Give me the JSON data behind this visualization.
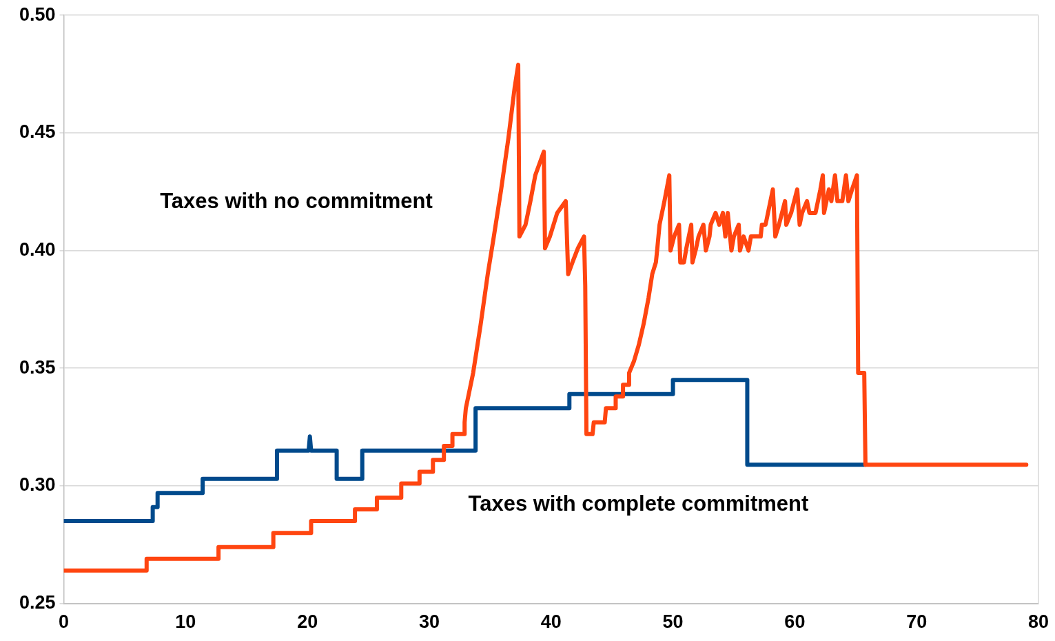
{
  "chart_data": {
    "type": "line",
    "xlim": [
      0,
      80
    ],
    "xticks": [
      0,
      10,
      20,
      30,
      40,
      50,
      60,
      70,
      80
    ],
    "ylim": [
      0.25,
      0.5
    ],
    "yticks": [
      {
        "value": 0.25,
        "label": "0.25"
      },
      {
        "value": 0.3,
        "label": "0.30"
      },
      {
        "value": 0.35,
        "label": "0.35"
      },
      {
        "value": 0.4,
        "label": "0.40"
      },
      {
        "value": 0.45,
        "label": "0.45"
      },
      {
        "value": 0.5,
        "label": "0.50"
      }
    ],
    "grid": "y",
    "legend": false,
    "marker": "none",
    "line_style": "solid",
    "series": [
      {
        "name": "Taxes with no commitment",
        "color": "#ff4510",
        "x": [
          0,
          6.8,
          6.8,
          12.7,
          12.7,
          17.2,
          17.2,
          20.3,
          20.3,
          23.9,
          23.9,
          25.7,
          25.7,
          27.7,
          27.7,
          29.2,
          29.2,
          30.3,
          30.3,
          31.2,
          31.2,
          31.9,
          31.9,
          32.9,
          32.9,
          33.0,
          33.6,
          34.2,
          34.8,
          35.3,
          35.9,
          36.5,
          37.0,
          37.3,
          37.4,
          37.9,
          38.3,
          38.7,
          39.4,
          39.5,
          39.9,
          40.5,
          41.2,
          41.4,
          41.75,
          42.2,
          42.7,
          42.8,
          42.9,
          43.4,
          43.5,
          44.4,
          44.5,
          45.3,
          45.3,
          45.9,
          45.9,
          46.4,
          46.4,
          46.8,
          47.2,
          47.6,
          48.0,
          48.3,
          48.6,
          48.7,
          48.9,
          49.3,
          49.7,
          49.8,
          50.1,
          50.5,
          50.6,
          50.9,
          51.1,
          51.5,
          51.6,
          51.9,
          52.1,
          52.5,
          52.7,
          53.0,
          53.1,
          53.5,
          53.8,
          54.1,
          54.3,
          54.5,
          54.8,
          55.0,
          55.4,
          55.5,
          55.8,
          56.2,
          56.4,
          57.2,
          57.3,
          57.6,
          58.0,
          58.2,
          58.4,
          58.7,
          59.2,
          59.3,
          59.7,
          60.2,
          60.4,
          60.6,
          61.0,
          61.2,
          61.7,
          61.9,
          62.1,
          62.3,
          62.4,
          62.8,
          63.0,
          63.3,
          63.5,
          63.9,
          64.2,
          64.4,
          64.7,
          65.1,
          65.2,
          65.7,
          65.8,
          79
        ],
        "values": [
          0.264,
          0.264,
          0.269,
          0.269,
          0.274,
          0.274,
          0.28,
          0.28,
          0.285,
          0.285,
          0.29,
          0.29,
          0.295,
          0.295,
          0.301,
          0.301,
          0.306,
          0.306,
          0.311,
          0.311,
          0.317,
          0.317,
          0.322,
          0.322,
          0.327,
          0.333,
          0.348,
          0.368,
          0.39,
          0.406,
          0.426,
          0.448,
          0.469,
          0.479,
          0.406,
          0.411,
          0.421,
          0.432,
          0.442,
          0.401,
          0.406,
          0.416,
          0.421,
          0.39,
          0.395,
          0.401,
          0.406,
          0.385,
          0.322,
          0.322,
          0.327,
          0.327,
          0.333,
          0.333,
          0.338,
          0.338,
          0.343,
          0.343,
          0.348,
          0.353,
          0.36,
          0.369,
          0.38,
          0.39,
          0.395,
          0.4,
          0.411,
          0.421,
          0.432,
          0.4,
          0.406,
          0.411,
          0.395,
          0.395,
          0.401,
          0.411,
          0.395,
          0.401,
          0.406,
          0.411,
          0.4,
          0.406,
          0.411,
          0.416,
          0.411,
          0.416,
          0.406,
          0.416,
          0.4,
          0.406,
          0.411,
          0.4,
          0.406,
          0.4,
          0.406,
          0.406,
          0.411,
          0.411,
          0.421,
          0.426,
          0.406,
          0.411,
          0.421,
          0.411,
          0.416,
          0.426,
          0.411,
          0.416,
          0.421,
          0.416,
          0.416,
          0.421,
          0.426,
          0.432,
          0.416,
          0.426,
          0.421,
          0.432,
          0.421,
          0.421,
          0.432,
          0.421,
          0.426,
          0.432,
          0.348,
          0.348,
          0.309,
          0.309
        ]
      },
      {
        "name": "Taxes with complete commitment",
        "color": "#004a8c",
        "x": [
          0,
          7.3,
          7.3,
          7.7,
          7.7,
          11.4,
          11.4,
          17.5,
          17.5,
          20.1,
          20.2,
          20.3,
          22.4,
          22.4,
          24.5,
          24.5,
          33.8,
          33.8,
          41.5,
          41.5,
          50,
          50,
          56.1,
          56.1,
          65.8
        ],
        "values": [
          0.285,
          0.285,
          0.291,
          0.291,
          0.297,
          0.297,
          0.303,
          0.303,
          0.315,
          0.315,
          0.321,
          0.315,
          0.315,
          0.303,
          0.303,
          0.315,
          0.315,
          0.333,
          0.333,
          0.339,
          0.339,
          0.345,
          0.345,
          0.309,
          0.309
        ]
      }
    ]
  }
}
